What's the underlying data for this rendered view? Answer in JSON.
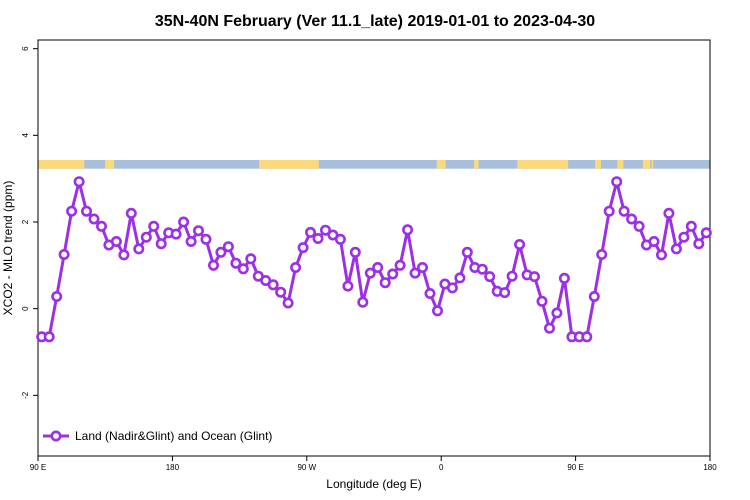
{
  "chart_data": {
    "type": "line",
    "title": "35N-40N February (Ver 11.1_late)   2019-01-01 to 2023-04-30",
    "xlabel": "Longitude (deg E)",
    "ylabel": "XCO2 - MLO trend (ppm)",
    "xlim": [
      90,
      540
    ],
    "ylim": [
      -3.4,
      6.2
    ],
    "x_ticks": [
      {
        "value": 90,
        "label": "90 E"
      },
      {
        "value": 180,
        "label": "180"
      },
      {
        "value": 270,
        "label": "90 W"
      },
      {
        "value": 360,
        "label": "0"
      },
      {
        "value": 450,
        "label": "90 E"
      },
      {
        "value": 540,
        "label": "180"
      }
    ],
    "y_ticks": [
      {
        "value": -2,
        "label": "-2"
      },
      {
        "value": 0,
        "label": "0"
      },
      {
        "value": 2,
        "label": "2"
      },
      {
        "value": 4,
        "label": "4"
      },
      {
        "value": 6,
        "label": "6"
      }
    ],
    "grid": false,
    "legend": {
      "position": "bottom-left"
    },
    "land_ocean_strip": {
      "y_range": [
        3.23,
        3.43
      ],
      "ocean_color": "#a8bfdc",
      "land_color": "#fcd97a",
      "land_segments": [
        [
          90,
          121
        ],
        [
          135,
          141
        ],
        [
          238,
          278
        ],
        [
          357,
          363
        ],
        [
          382,
          385
        ],
        [
          411,
          445
        ],
        [
          463,
          467
        ],
        [
          478,
          482
        ],
        [
          495,
          500
        ],
        [
          501,
          502
        ]
      ]
    },
    "series": [
      {
        "name": "Land (Nadir&Glint) and Ocean (Glint)",
        "color": "#9b30e6",
        "x": [
          92.5,
          97.5,
          102.5,
          107.5,
          112.5,
          117.5,
          122.5,
          127.5,
          132.5,
          137.5,
          142.5,
          147.5,
          152.5,
          157.5,
          162.5,
          167.5,
          172.5,
          177.5,
          182.5,
          187.5,
          192.5,
          197.5,
          202.5,
          207.5,
          212.5,
          217.5,
          222.5,
          227.5,
          232.5,
          237.5,
          242.5,
          247.5,
          252.5,
          257.5,
          262.5,
          267.5,
          272.5,
          277.5,
          282.5,
          287.5,
          292.5,
          297.5,
          302.5,
          307.5,
          312.5,
          317.5,
          322.5,
          327.5,
          332.5,
          337.5,
          342.5,
          347.5,
          352.5,
          357.5,
          362.5,
          367.5,
          372.5,
          377.5,
          382.5,
          387.5,
          392.5,
          397.5,
          402.5,
          407.5,
          412.5,
          417.5,
          422.5,
          427.5,
          432.5,
          437.5,
          442.5,
          447.5,
          452.5,
          457.5,
          462.5,
          467.5,
          472.5,
          477.5,
          482.5,
          487.5,
          492.5,
          497.5,
          502.5,
          507.5,
          512.5,
          517.5,
          522.5,
          527.5,
          532.5,
          537.5
        ],
        "values": [
          -0.65,
          -0.65,
          0.28,
          1.25,
          2.25,
          2.93,
          2.25,
          2.07,
          1.9,
          1.47,
          1.55,
          1.24,
          2.2,
          1.38,
          1.65,
          1.9,
          1.5,
          1.75,
          1.72,
          2.0,
          1.55,
          1.8,
          1.6,
          1.0,
          1.3,
          1.43,
          1.05,
          0.92,
          1.15,
          0.75,
          0.65,
          0.55,
          0.38,
          0.13,
          0.95,
          1.41,
          1.76,
          1.62,
          1.81,
          1.7,
          1.6,
          0.52,
          1.3,
          0.15,
          0.82,
          0.95,
          0.6,
          0.8,
          1.0,
          1.82,
          0.82,
          0.95,
          0.35,
          -0.05,
          0.57,
          0.48,
          0.71,
          1.3,
          0.95,
          0.91,
          0.74,
          0.4,
          0.37,
          0.75,
          1.48,
          0.78,
          0.74,
          0.17,
          -0.45,
          -0.1,
          0.7,
          -0.65,
          -0.65,
          -0.65,
          0.28,
          1.25,
          2.25,
          2.93,
          2.25,
          2.07,
          1.9,
          1.47,
          1.55,
          1.24,
          2.2,
          1.38,
          1.65,
          1.9,
          1.5,
          1.75
        ]
      }
    ]
  }
}
